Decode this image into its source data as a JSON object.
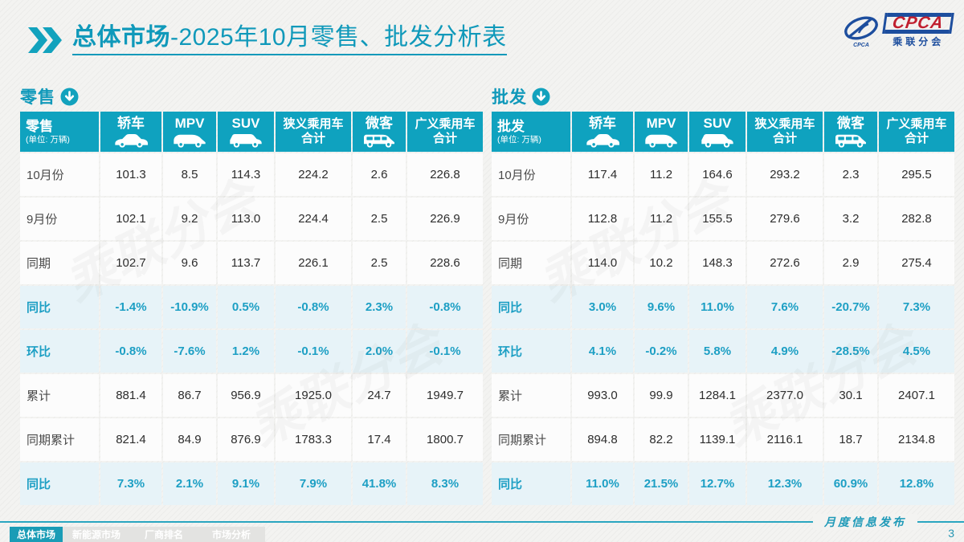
{
  "page": {
    "title_strong": "总体市场",
    "title_rest": "-2025年10月零售、批发分析表",
    "footer_note": "月度信息发布",
    "page_number": "3",
    "watermark": "乘联分会"
  },
  "logo": {
    "name": "CPCA",
    "subtitle": "乘联分会",
    "swirl_caption": "CPCA"
  },
  "unit_note": "(单位: 万辆)",
  "columns": [
    {
      "label": "轿车",
      "icon": "sedan-icon"
    },
    {
      "label": "MPV",
      "icon": "mpv-icon"
    },
    {
      "label": "SUV",
      "icon": "suv-icon"
    },
    {
      "label": "狭义乘用车",
      "label2": "合计"
    },
    {
      "label": "微客",
      "icon": "van-icon"
    },
    {
      "label": "广义乘用车",
      "label2": "合计"
    }
  ],
  "tables": [
    {
      "section_label": "零售",
      "corner_label": "零售",
      "rows": [
        {
          "label": "10月份",
          "type": "data",
          "values": [
            "101.3",
            "8.5",
            "114.3",
            "224.2",
            "2.6",
            "226.8"
          ]
        },
        {
          "label": "9月份",
          "type": "data",
          "values": [
            "102.1",
            "9.2",
            "113.0",
            "224.4",
            "2.5",
            "226.9"
          ]
        },
        {
          "label": "同期",
          "type": "data",
          "values": [
            "102.7",
            "9.6",
            "113.7",
            "226.1",
            "2.5",
            "228.6"
          ]
        },
        {
          "label": "同比",
          "type": "pct",
          "values": [
            "-1.4%",
            "-10.9%",
            "0.5%",
            "-0.8%",
            "2.3%",
            "-0.8%"
          ]
        },
        {
          "label": "环比",
          "type": "pct",
          "values": [
            "-0.8%",
            "-7.6%",
            "1.2%",
            "-0.1%",
            "2.0%",
            "-0.1%"
          ]
        },
        {
          "label": "累计",
          "type": "data",
          "values": [
            "881.4",
            "86.7",
            "956.9",
            "1925.0",
            "24.7",
            "1949.7"
          ]
        },
        {
          "label": "同期累计",
          "type": "data",
          "values": [
            "821.4",
            "84.9",
            "876.9",
            "1783.3",
            "17.4",
            "1800.7"
          ]
        },
        {
          "label": "同比",
          "type": "pct",
          "values": [
            "7.3%",
            "2.1%",
            "9.1%",
            "7.9%",
            "41.8%",
            "8.3%"
          ]
        }
      ]
    },
    {
      "section_label": "批发",
      "corner_label": "批发",
      "rows": [
        {
          "label": "10月份",
          "type": "data",
          "values": [
            "117.4",
            "11.2",
            "164.6",
            "293.2",
            "2.3",
            "295.5"
          ]
        },
        {
          "label": "9月份",
          "type": "data",
          "values": [
            "112.8",
            "11.2",
            "155.5",
            "279.6",
            "3.2",
            "282.8"
          ]
        },
        {
          "label": "同期",
          "type": "data",
          "values": [
            "114.0",
            "10.2",
            "148.3",
            "272.6",
            "2.9",
            "275.4"
          ]
        },
        {
          "label": "同比",
          "type": "pct",
          "values": [
            "3.0%",
            "9.6%",
            "11.0%",
            "7.6%",
            "-20.7%",
            "7.3%"
          ]
        },
        {
          "label": "环比",
          "type": "pct",
          "values": [
            "4.1%",
            "-0.2%",
            "5.8%",
            "4.9%",
            "-28.5%",
            "4.5%"
          ]
        },
        {
          "label": "累计",
          "type": "data",
          "values": [
            "993.0",
            "99.9",
            "1284.1",
            "2377.0",
            "30.1",
            "2407.1"
          ]
        },
        {
          "label": "同期累计",
          "type": "data",
          "values": [
            "894.8",
            "82.2",
            "1139.1",
            "2116.1",
            "18.7",
            "2134.8"
          ]
        },
        {
          "label": "同比",
          "type": "pct",
          "values": [
            "11.0%",
            "21.5%",
            "12.7%",
            "12.3%",
            "60.9%",
            "12.8%"
          ]
        }
      ]
    }
  ],
  "tabs": [
    {
      "label": "总体市场",
      "active": true
    },
    {
      "label": "新能源市场",
      "active": false
    },
    {
      "label": "厂商排名",
      "active": false
    },
    {
      "label": "市场分析",
      "active": false
    }
  ],
  "colors": {
    "accent": "#0fa2bf",
    "title": "#1099ba",
    "pct_bg": "#e7f3f8",
    "pct_text": "#1d9fc4",
    "tab_active": "#1a9cb6",
    "tab_inactive": "#e3e3e1",
    "logo_blue": "#1d4e9e",
    "logo_red": "#c01f2f"
  }
}
